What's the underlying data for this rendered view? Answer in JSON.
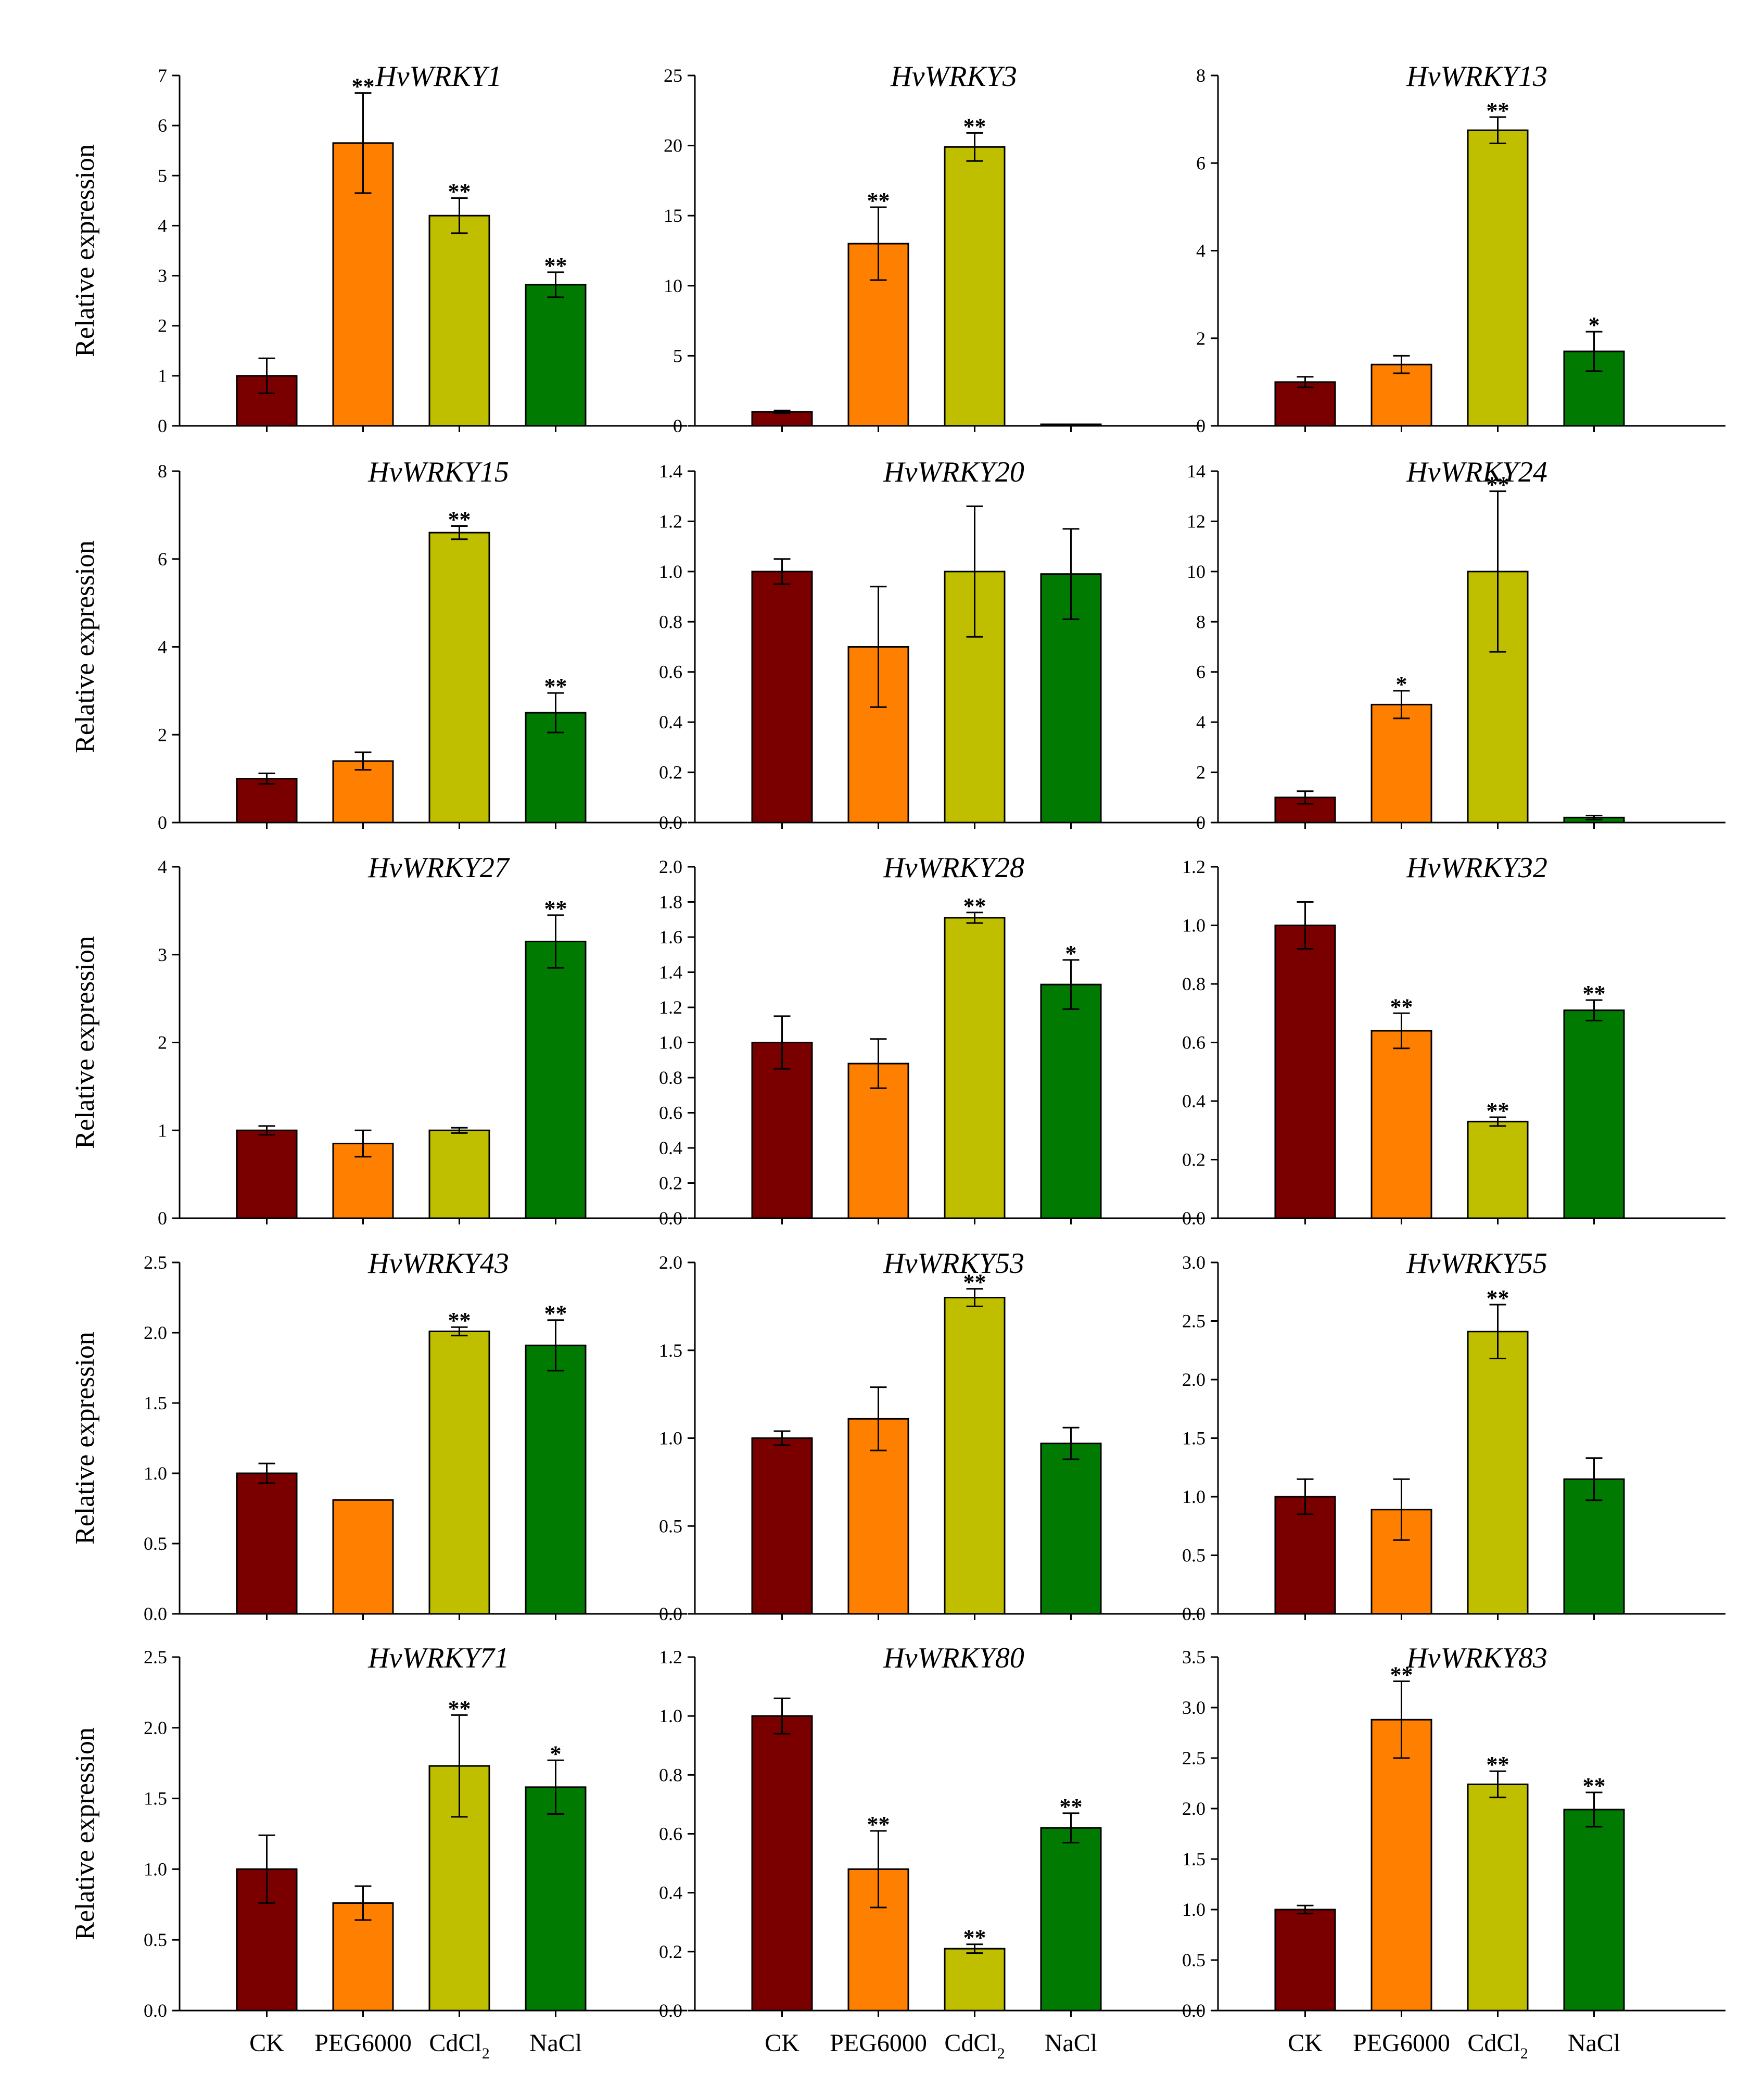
{
  "chart_data": {
    "type": "bar",
    "layout": "grid 5 rows x 3 columns",
    "categories": [
      "CK",
      "PEG6000",
      "CdCl2",
      "NaCl"
    ],
    "category_label_parts": [
      {
        "main": "CK",
        "sub": ""
      },
      {
        "main": "PEG6000",
        "sub": ""
      },
      {
        "main": "CdCl",
        "sub": "2"
      },
      {
        "main": "NaCl",
        "sub": ""
      }
    ],
    "ylabel": "Relative expression",
    "colors": [
      "#7a0000",
      "#ff8000",
      "#bfbf00",
      "#007a00"
    ],
    "panels": [
      {
        "title": "HvWRKY1",
        "ylim": [
          0,
          7
        ],
        "ticks": [
          "0",
          "1",
          "2",
          "3",
          "4",
          "5",
          "6",
          "7"
        ],
        "values": [
          1.0,
          5.65,
          4.2,
          2.82
        ],
        "errors": [
          0.35,
          1.0,
          0.35,
          0.25
        ],
        "sig": [
          "",
          "**",
          "**",
          "**"
        ]
      },
      {
        "title": "HvWRKY3",
        "ylim": [
          0,
          25
        ],
        "ticks": [
          "0",
          "5",
          "10",
          "15",
          "20",
          "25"
        ],
        "values": [
          1.0,
          13.0,
          19.9,
          0.0
        ],
        "errors": [
          0.1,
          2.6,
          1.0,
          0.05
        ],
        "sig": [
          "",
          "**",
          "**",
          ""
        ]
      },
      {
        "title": "HvWRKY13",
        "ylim": [
          0,
          8
        ],
        "ticks": [
          "0",
          "2",
          "4",
          "6",
          "8"
        ],
        "values": [
          1.0,
          1.4,
          6.75,
          1.7
        ],
        "errors": [
          0.12,
          0.2,
          0.3,
          0.45
        ],
        "sig": [
          "",
          "",
          "**",
          "*"
        ]
      },
      {
        "title": "HvWRKY15",
        "ylim": [
          0,
          8
        ],
        "ticks": [
          "0",
          "2",
          "4",
          "6",
          "8"
        ],
        "values": [
          1.0,
          1.4,
          6.6,
          2.5
        ],
        "errors": [
          0.12,
          0.2,
          0.15,
          0.45
        ],
        "sig": [
          "",
          "",
          "**",
          "**"
        ]
      },
      {
        "title": "HvWRKY20",
        "ylim": [
          0,
          1.4
        ],
        "ticks": [
          "0.0",
          "0.2",
          "0.4",
          "0.6",
          "0.8",
          "1.0",
          "1.2",
          "1.4"
        ],
        "values": [
          1.0,
          0.7,
          1.0,
          0.99
        ],
        "errors": [
          0.05,
          0.24,
          0.26,
          0.18
        ],
        "sig": [
          "",
          "",
          "",
          ""
        ]
      },
      {
        "title": "HvWRKY24",
        "ylim": [
          0,
          14
        ],
        "ticks": [
          "0",
          "2",
          "4",
          "6",
          "8",
          "10",
          "12",
          "14"
        ],
        "values": [
          1.0,
          4.7,
          10.0,
          0.2
        ],
        "errors": [
          0.25,
          0.55,
          3.2,
          0.08
        ],
        "sig": [
          "",
          "*",
          "**",
          ""
        ]
      },
      {
        "title": "HvWRKY27",
        "ylim": [
          0,
          4
        ],
        "ticks": [
          "0",
          "1",
          "2",
          "3",
          "4"
        ],
        "values": [
          1.0,
          0.85,
          1.0,
          3.15
        ],
        "errors": [
          0.05,
          0.15,
          0.03,
          0.3
        ],
        "sig": [
          "",
          "",
          "",
          "**"
        ]
      },
      {
        "title": "HvWRKY28",
        "ylim": [
          0,
          2.0
        ],
        "ticks": [
          "0.0",
          "0.2",
          "0.4",
          "0.6",
          "0.8",
          "1.0",
          "1.2",
          "1.4",
          "1.6",
          "1.8",
          "2.0"
        ],
        "values": [
          1.0,
          0.88,
          1.71,
          1.33
        ],
        "errors": [
          0.15,
          0.14,
          0.03,
          0.14
        ],
        "sig": [
          "",
          "",
          "**",
          "*"
        ]
      },
      {
        "title": "HvWRKY32",
        "ylim": [
          0,
          1.2
        ],
        "ticks": [
          "0.0",
          "0.2",
          "0.4",
          "0.6",
          "0.8",
          "1.0",
          "1.2"
        ],
        "values": [
          1.0,
          0.64,
          0.33,
          0.71
        ],
        "errors": [
          0.08,
          0.06,
          0.015,
          0.035
        ],
        "sig": [
          "",
          "**",
          "**",
          "**"
        ]
      },
      {
        "title": "HvWRKY43",
        "ylim": [
          0,
          2.5
        ],
        "ticks": [
          "0.0",
          "0.5",
          "1.0",
          "1.5",
          "2.0",
          "2.5"
        ],
        "values": [
          1.0,
          0.81,
          2.01,
          1.91
        ],
        "errors": [
          0.07,
          0.0,
          0.03,
          0.18
        ],
        "sig": [
          "",
          "",
          "**",
          "**"
        ]
      },
      {
        "title": "HvWRKY53",
        "ylim": [
          0,
          2.0
        ],
        "ticks": [
          "0.0",
          "0.5",
          "1.0",
          "1.5",
          "2.0"
        ],
        "values": [
          1.0,
          1.11,
          1.8,
          0.97
        ],
        "errors": [
          0.04,
          0.18,
          0.05,
          0.09
        ],
        "sig": [
          "",
          "",
          "**",
          ""
        ]
      },
      {
        "title": "HvWRKY55",
        "ylim": [
          0,
          3.0
        ],
        "ticks": [
          "0.0",
          "0.5",
          "1.0",
          "1.5",
          "2.0",
          "2.5",
          "3.0"
        ],
        "values": [
          1.0,
          0.89,
          2.41,
          1.15
        ],
        "errors": [
          0.15,
          0.26,
          0.23,
          0.18
        ],
        "sig": [
          "",
          "",
          "**",
          ""
        ]
      },
      {
        "title": "HvWRKY71",
        "ylim": [
          0,
          2.5
        ],
        "ticks": [
          "0.0",
          "0.5",
          "1.0",
          "1.5",
          "2.0",
          "2.5"
        ],
        "values": [
          1.0,
          0.76,
          1.73,
          1.58
        ],
        "errors": [
          0.24,
          0.12,
          0.36,
          0.19
        ],
        "sig": [
          "",
          "",
          "**",
          "*"
        ]
      },
      {
        "title": "HvWRKY80",
        "ylim": [
          0,
          1.2
        ],
        "ticks": [
          "0.0",
          "0.2",
          "0.4",
          "0.6",
          "0.8",
          "1.0",
          "1.2"
        ],
        "values": [
          1.0,
          0.48,
          0.21,
          0.62
        ],
        "errors": [
          0.06,
          0.13,
          0.015,
          0.05
        ],
        "sig": [
          "",
          "**",
          "**",
          "**"
        ]
      },
      {
        "title": "HvWRKY83",
        "ylim": [
          0,
          3.5
        ],
        "ticks": [
          "0.0",
          "0.5",
          "1.0",
          "1.5",
          "2.0",
          "2.5",
          "3.0",
          "3.5"
        ],
        "values": [
          1.0,
          2.88,
          2.24,
          1.99
        ],
        "errors": [
          0.04,
          0.38,
          0.13,
          0.17
        ],
        "sig": [
          "",
          "**",
          "**",
          "**"
        ]
      }
    ]
  }
}
